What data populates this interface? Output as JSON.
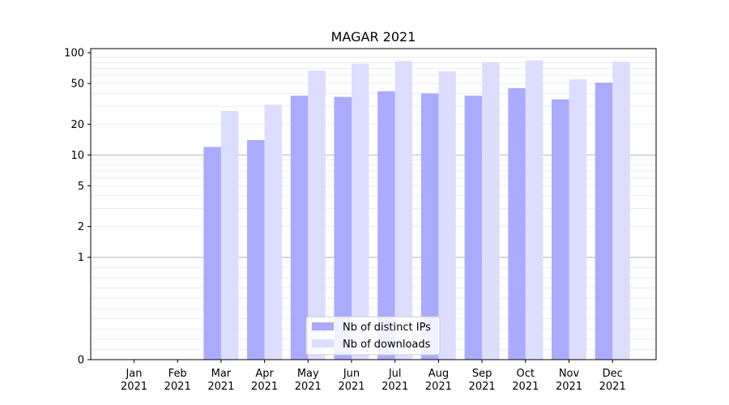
{
  "chart_data": {
    "type": "bar",
    "title": "MAGAR 2021",
    "xlabel": "",
    "ylabel": "",
    "yscale": "symlog",
    "ylim": [
      0,
      100
    ],
    "yticks": [
      0,
      1,
      2,
      5,
      10,
      20,
      50,
      100
    ],
    "grid": "horizontal",
    "legend_position": "bottom-center",
    "categories": [
      "Jan\n2021",
      "Feb\n2021",
      "Mar\n2021",
      "Apr\n2021",
      "May\n2021",
      "Jun\n2021",
      "Jul\n2021",
      "Aug\n2021",
      "Sep\n2021",
      "Oct\n2021",
      "Nov\n2021",
      "Dec\n2021"
    ],
    "category_lines": [
      [
        "Jan",
        "2021"
      ],
      [
        "Feb",
        "2021"
      ],
      [
        "Mar",
        "2021"
      ],
      [
        "Apr",
        "2021"
      ],
      [
        "May",
        "2021"
      ],
      [
        "Jun",
        "2021"
      ],
      [
        "Jul",
        "2021"
      ],
      [
        "Aug",
        "2021"
      ],
      [
        "Sep",
        "2021"
      ],
      [
        "Oct",
        "2021"
      ],
      [
        "Nov",
        "2021"
      ],
      [
        "Dec",
        "2021"
      ]
    ],
    "series": [
      {
        "name": "Nb of distinct IPs",
        "color": "#aaaaff",
        "values": [
          0,
          0,
          12,
          14,
          38,
          37,
          42,
          40,
          38,
          45,
          35,
          51
        ]
      },
      {
        "name": "Nb of downloads",
        "color": "#ddddff",
        "values": [
          0,
          0,
          27,
          31,
          67,
          78,
          83,
          66,
          81,
          84,
          55,
          82
        ]
      }
    ]
  }
}
